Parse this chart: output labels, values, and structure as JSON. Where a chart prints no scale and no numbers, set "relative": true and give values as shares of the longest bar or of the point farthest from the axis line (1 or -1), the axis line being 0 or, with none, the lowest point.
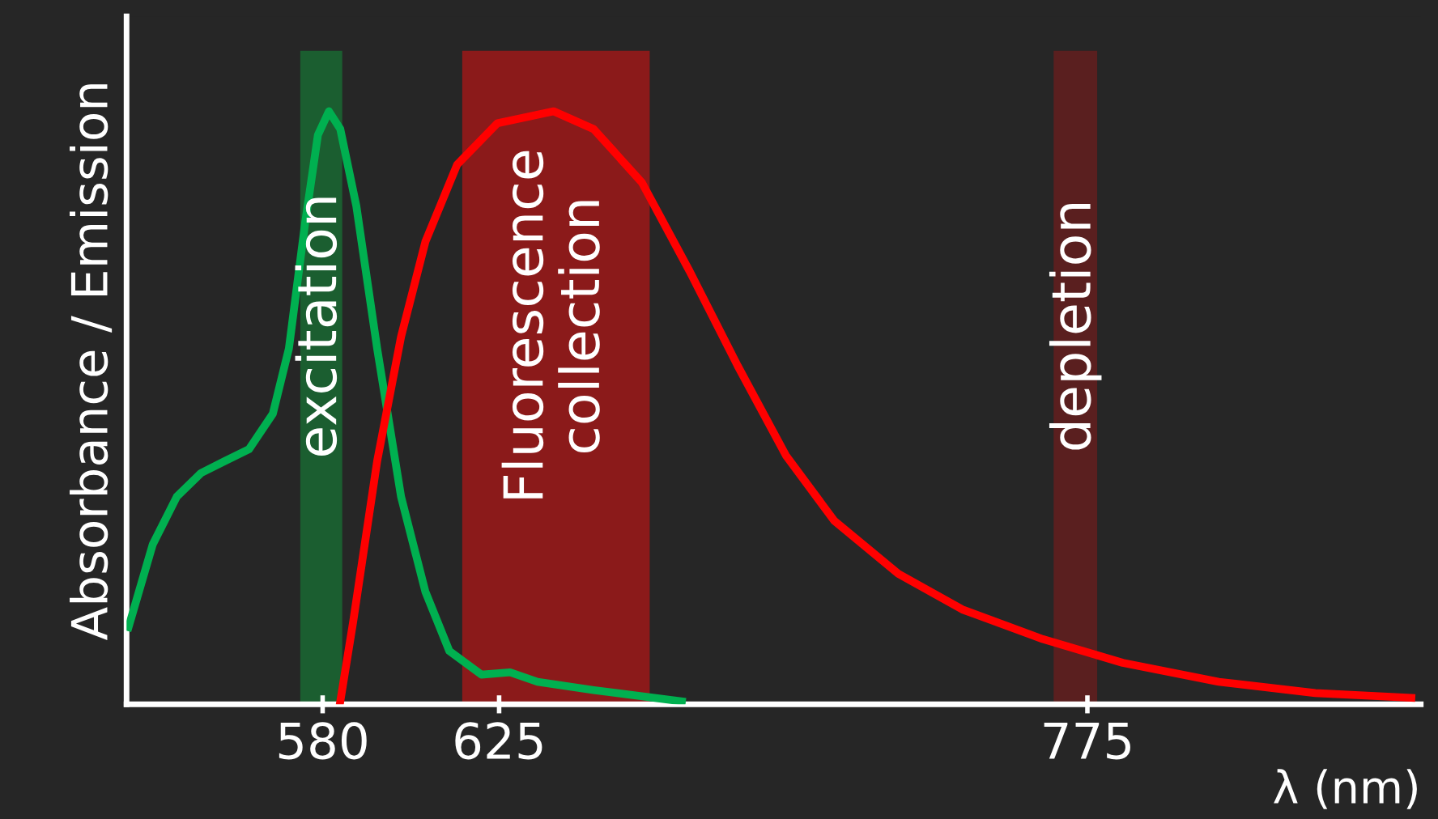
{
  "chart_data": {
    "type": "line",
    "relative": true,
    "xlabel": "λ (nm)",
    "ylabel": "Absorbance / Emission",
    "xlim": [
      530,
      860
    ],
    "xticks": [
      580,
      625,
      775
    ],
    "tick_labels": "x",
    "grid": false,
    "legend": false,
    "marker": "none",
    "line_style": "solid",
    "series": [
      {
        "color": "#00b050",
        "x": [
          530.5,
          536.7,
          542.8,
          549,
          555,
          561.2,
          567.3,
          571.4,
          575.5,
          578.8,
          581.6,
          584.5,
          588.6,
          593.9,
          600,
          606.2,
          612.3,
          620.5,
          627.8,
          634.8,
          649.1,
          671.6
        ],
        "values": [
          0.13,
          0.27,
          0.35,
          0.39,
          0.41,
          0.43,
          0.49,
          0.6,
          0.81,
          0.96,
          1.0,
          0.97,
          0.84,
          0.6,
          0.35,
          0.19,
          0.09,
          0.05,
          0.054,
          0.038,
          0.024,
          0.005
        ]
      },
      {
        "color": "#ff0000",
        "x": [
          584.5,
          587.8,
          593.9,
          600,
          606.2,
          614.3,
          624.6,
          638.9,
          649.1,
          661.4,
          673.6,
          685.9,
          698.1,
          710.4,
          726.8,
          743.1,
          763.6,
          784,
          808.5,
          833.1,
          857.6
        ],
        "values": [
          0.005,
          0.14,
          0.41,
          0.62,
          0.78,
          0.91,
          0.98,
          1.0,
          0.97,
          0.88,
          0.73,
          0.57,
          0.42,
          0.31,
          0.22,
          0.16,
          0.11,
          0.07,
          0.038,
          0.019,
          0.011
        ]
      }
    ],
    "bands": [
      {
        "axis": "x",
        "from": 574.3,
        "to": 585,
        "label": "excitation",
        "color": "#1b5e30"
      },
      {
        "axis": "x",
        "from": 615.6,
        "to": 663.4,
        "label": "Fluorescence\ncollection",
        "color": "#8b1a1a"
      },
      {
        "axis": "x",
        "from": 766.4,
        "to": 777.5,
        "label": "depletion",
        "color": "#5a1f1f"
      }
    ]
  }
}
